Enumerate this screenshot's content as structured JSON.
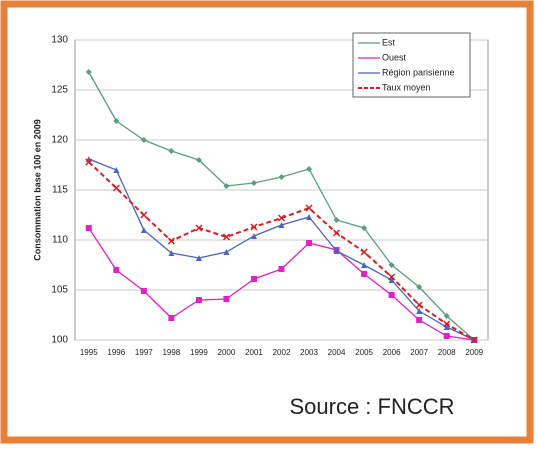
{
  "chart_data": {
    "type": "line",
    "y_label": "Consommation base 100 en 2009",
    "categories": [
      "1995",
      "1996",
      "1997",
      "1998",
      "1999",
      "2000",
      "2001",
      "2002",
      "2003",
      "2004",
      "2005",
      "2006",
      "2007",
      "2008",
      "2009"
    ],
    "series": [
      {
        "name": "Est",
        "color": "#5a9e7c",
        "marker": "diamond",
        "dash": false,
        "values": [
          126.8,
          121.9,
          120.0,
          118.9,
          118.0,
          115.4,
          115.7,
          116.3,
          117.1,
          112.0,
          111.2,
          107.5,
          105.3,
          102.4,
          100
        ]
      },
      {
        "name": "Ouest",
        "color": "#e020c8",
        "marker": "square",
        "dash": false,
        "values": [
          111.2,
          107.0,
          104.9,
          102.2,
          104.0,
          104.1,
          106.1,
          107.1,
          109.7,
          109.0,
          106.6,
          104.5,
          102.0,
          100.4,
          100
        ]
      },
      {
        "name": "Région parisienne",
        "color": "#4a64c0",
        "marker": "triangle",
        "dash": false,
        "values": [
          118.1,
          117.0,
          111.0,
          108.7,
          108.2,
          108.8,
          110.4,
          111.5,
          112.3,
          108.9,
          107.5,
          106.0,
          102.9,
          101.3,
          100
        ]
      },
      {
        "name": "Taux moyen",
        "color": "#d42020",
        "marker": "cross",
        "dash": true,
        "values": [
          117.8,
          115.2,
          112.5,
          109.9,
          111.2,
          110.3,
          111.3,
          112.2,
          113.2,
          110.7,
          108.8,
          106.3,
          103.5,
          101.6,
          100
        ]
      }
    ],
    "ylim": [
      100,
      130
    ],
    "yticks": [
      100,
      105,
      110,
      115,
      120,
      125,
      130
    ],
    "grid": true,
    "legend": "top-right"
  },
  "source": "Source : FNCCR"
}
